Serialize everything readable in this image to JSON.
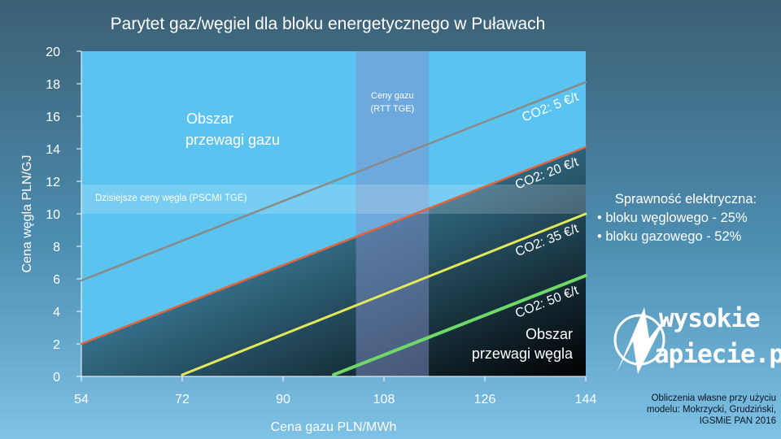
{
  "title": "Parytet gaz/węgiel dla bloku energetycznego w Puławach",
  "sidebar": {
    "heading": "Sprawność elektryczna:",
    "items": [
      "• bloku węglowego - 25%",
      "•  bloku gazowego - 52%"
    ]
  },
  "logo": {
    "line1": "wysokie",
    "line2": "apiecie.pl"
  },
  "note": [
    "Obliczenia własne przy użyciu",
    "modelu: Mokrzycki, Grudziński,",
    "IGSMiE PAN 2016"
  ],
  "colors": {
    "co2_5": "#8a8a8a",
    "co2_20": "#e0643c",
    "co2_35": "#e3e85a",
    "co2_50": "#6ed868",
    "plot_bg": "#5bc3f0"
  },
  "chart_data": {
    "type": "line",
    "xlabel": "Cena gazu PLN/MWh",
    "ylabel": "Cena węgla PLN/GJ",
    "xlim": [
      54,
      144
    ],
    "ylim": [
      0,
      20
    ],
    "xticks": [
      54,
      72,
      90,
      108,
      126,
      144
    ],
    "yticks": [
      0,
      2,
      4,
      6,
      8,
      10,
      12,
      14,
      16,
      18,
      20
    ],
    "series": [
      {
        "name": "CO2: 5 €/t",
        "x": [
          54,
          144
        ],
        "y": [
          5.9,
          18.1
        ]
      },
      {
        "name": "CO2: 20 €/t",
        "x": [
          54,
          144
        ],
        "y": [
          2.0,
          14.1
        ]
      },
      {
        "name": "CO2: 35 €/t",
        "x": [
          72,
          144
        ],
        "y": [
          0.1,
          10.0
        ]
      },
      {
        "name": "CO2: 50 €/t",
        "x": [
          99,
          144
        ],
        "y": [
          0.1,
          6.2
        ]
      }
    ],
    "annotations": {
      "gas_band": {
        "label_lines": [
          "Ceny gazu",
          "(RTT TGE)"
        ],
        "x_range": [
          103,
          116
        ]
      },
      "coal_band": {
        "label": "Dzisiejsze ceny węgla (PSCMI TGE)",
        "y_range": [
          10,
          11.8
        ]
      },
      "gas_region": [
        "Obszar",
        "przewagi gazu"
      ],
      "coal_region": [
        "Obszar",
        "przewagi węgla"
      ]
    },
    "grid": false
  }
}
